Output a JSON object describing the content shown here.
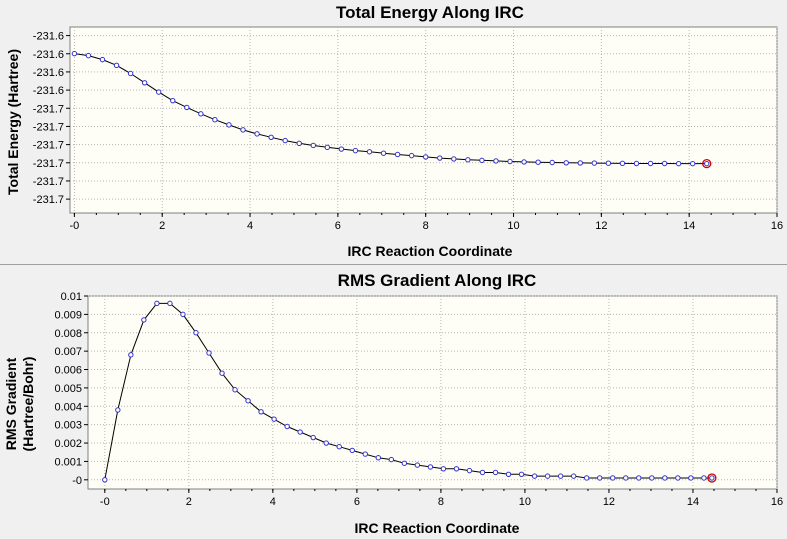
{
  "colors": {
    "plot_bg": "#fefef6",
    "grid": "#b4b4b4",
    "line": "#000000",
    "marker": "#3333cc",
    "highlight": "#cc0000"
  },
  "chart_data": [
    {
      "type": "line",
      "title": "Total Energy Along IRC",
      "xlabel": "IRC Reaction Coordinate",
      "ylabel": "Total Energy (Hartree)",
      "xlim": [
        -0.1,
        16
      ],
      "ylim": [
        -231.71,
        -231.58
      ],
      "x_ticks": [
        0,
        2,
        4,
        6,
        8,
        10,
        12,
        14,
        16
      ],
      "x_tick_labels": [
        "-0",
        "2",
        "4",
        "6",
        "8",
        "10",
        "12",
        "14",
        "16"
      ],
      "y_ticks": [
        -231.586,
        -231.5987,
        -231.6114,
        -231.6241,
        -231.6368,
        -231.6495,
        -231.6622,
        -231.6749,
        -231.6876,
        -231.7003
      ],
      "y_tick_labels": [
        "-231.6",
        "-231.6",
        "-231.6",
        "-231.6",
        "-231.7",
        "-231.7",
        "-231.7",
        "-231.7",
        "-231.7",
        "-231.7"
      ],
      "grid": true,
      "markers": true,
      "highlighted_point": "last",
      "x": [
        0,
        0.32,
        0.64,
        0.96,
        1.28,
        1.6,
        1.92,
        2.24,
        2.56,
        2.88,
        3.2,
        3.52,
        3.84,
        4.16,
        4.48,
        4.8,
        5.12,
        5.44,
        5.76,
        6.08,
        6.4,
        6.72,
        7.04,
        7.36,
        7.68,
        8.0,
        8.32,
        8.64,
        8.96,
        9.28,
        9.6,
        9.92,
        10.24,
        10.56,
        10.88,
        11.2,
        11.52,
        11.84,
        12.16,
        12.48,
        12.8,
        13.12,
        13.44,
        13.76,
        14.08,
        14.4
      ],
      "y": [
        -231.5986,
        -231.6,
        -231.6028,
        -231.6068,
        -231.6125,
        -231.619,
        -231.6255,
        -231.6315,
        -231.6362,
        -231.6407,
        -231.6448,
        -231.6484,
        -231.6519,
        -231.6547,
        -231.6571,
        -231.6594,
        -231.6613,
        -231.6628,
        -231.6641,
        -231.6653,
        -231.6664,
        -231.6672,
        -231.6682,
        -231.6691,
        -231.6699,
        -231.6708,
        -231.6716,
        -231.6722,
        -231.6728,
        -231.6732,
        -231.6736,
        -231.674,
        -231.6743,
        -231.6745,
        -231.6747,
        -231.6749,
        -231.675,
        -231.6751,
        -231.6752,
        -231.6753,
        -231.6754,
        -231.6754,
        -231.6754,
        -231.6755,
        -231.6755,
        -231.6755
      ]
    },
    {
      "type": "line",
      "title": "RMS Gradient Along IRC",
      "xlabel": "IRC Reaction Coordinate",
      "ylabel": "RMS Gradient (Hartree/Bohr)",
      "ylabel_lines": [
        "RMS Gradient",
        "(Hartree/Bohr)"
      ],
      "xlim": [
        -0.4,
        16
      ],
      "ylim": [
        -0.0005,
        0.01
      ],
      "x_ticks": [
        0,
        2,
        4,
        6,
        8,
        10,
        12,
        14,
        16
      ],
      "x_tick_labels": [
        "-0",
        "2",
        "4",
        "6",
        "8",
        "10",
        "12",
        "14",
        "16"
      ],
      "y_ticks": [
        0,
        0.001,
        0.002,
        0.003,
        0.004,
        0.005,
        0.006,
        0.007,
        0.008,
        0.009,
        0.01
      ],
      "y_tick_labels": [
        "-0",
        "0.001",
        "0.002",
        "0.003",
        "0.004",
        "0.005",
        "0.006",
        "0.007",
        "0.008",
        "0.009",
        "0.01"
      ],
      "grid": true,
      "markers": true,
      "highlighted_point": "last",
      "x": [
        0,
        0.31,
        0.62,
        0.93,
        1.24,
        1.55,
        1.86,
        2.17,
        2.48,
        2.79,
        3.1,
        3.41,
        3.72,
        4.03,
        4.34,
        4.65,
        4.96,
        5.27,
        5.58,
        5.89,
        6.2,
        6.51,
        6.82,
        7.13,
        7.44,
        7.75,
        8.06,
        8.37,
        8.68,
        8.99,
        9.3,
        9.61,
        9.92,
        10.23,
        10.54,
        10.85,
        11.16,
        11.47,
        11.78,
        12.09,
        12.4,
        12.71,
        13.02,
        13.33,
        13.64,
        13.95,
        14.26,
        14.45
      ],
      "y": [
        0,
        0.0038,
        0.0068,
        0.0087,
        0.0096,
        0.0096,
        0.009,
        0.008,
        0.0069,
        0.0058,
        0.0049,
        0.0043,
        0.0037,
        0.0033,
        0.0029,
        0.0026,
        0.0023,
        0.002,
        0.0018,
        0.0016,
        0.0014,
        0.0012,
        0.0011,
        0.0009,
        0.0008,
        0.0007,
        0.0006,
        0.0006,
        0.0005,
        0.0004,
        0.0004,
        0.0003,
        0.0003,
        0.0002,
        0.0002,
        0.0002,
        0.0002,
        0.0001,
        0.0001,
        0.0001,
        0.0001,
        0.0001,
        0.0001,
        0.0001,
        0.0001,
        0.0001,
        0.0001,
        0.0001
      ]
    }
  ]
}
